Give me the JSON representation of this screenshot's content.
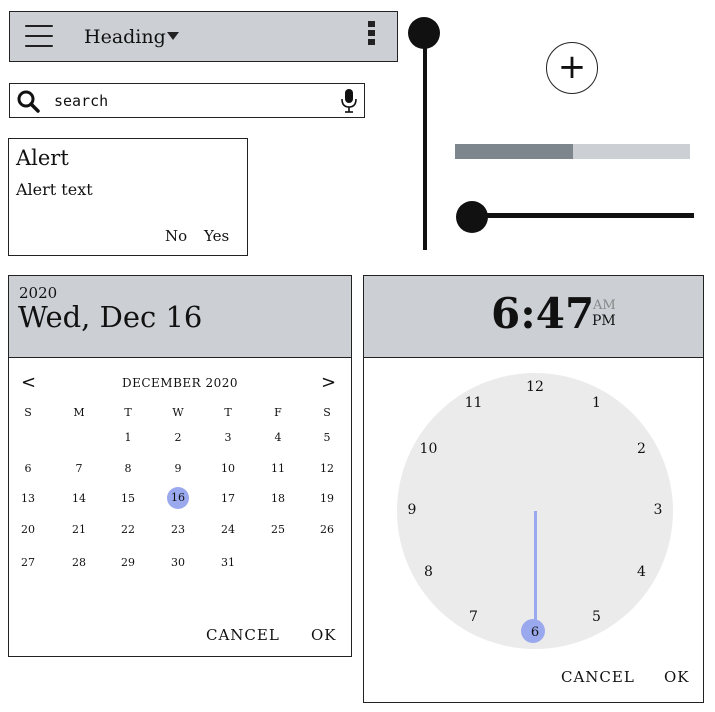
{
  "app_bar": {
    "title": "Heading"
  },
  "search": {
    "placeholder": "search"
  },
  "alert": {
    "title": "Alert",
    "text": "Alert text",
    "no_label": "No",
    "yes_label": "Yes"
  },
  "progress": {
    "value": 0.5
  },
  "vertical_slider": {
    "value": 1.0
  },
  "horizontal_slider": {
    "value": 0.0
  },
  "fab": {
    "label": "+"
  },
  "date_picker": {
    "year": "2020",
    "selected_date": "Wed, Dec 16",
    "month_label": "DECEMBER 2020",
    "prev_label": "<",
    "next_label": ">",
    "weekdays": [
      "S",
      "M",
      "T",
      "W",
      "T",
      "F",
      "S"
    ],
    "weeks": [
      [
        "",
        "",
        "1",
        "2",
        "3",
        "4",
        "5"
      ],
      [
        "6",
        "7",
        "8",
        "9",
        "10",
        "11",
        "12"
      ],
      [
        "13",
        "14",
        "15",
        "16",
        "17",
        "18",
        "19"
      ],
      [
        "20",
        "21",
        "22",
        "23",
        "24",
        "25",
        "26"
      ],
      [
        "27",
        "28",
        "29",
        "30",
        "31",
        "",
        ""
      ]
    ],
    "selected_day": "16",
    "cancel_label": "CANCEL",
    "ok_label": "OK"
  },
  "time_picker": {
    "time": "6:47",
    "am_label": "AM",
    "pm_label": "PM",
    "hours": [
      "12",
      "1",
      "2",
      "3",
      "4",
      "5",
      "6",
      "7",
      "8",
      "9",
      "10",
      "11"
    ],
    "selected_hour": "6",
    "cancel_label": "CANCEL",
    "ok_label": "OK"
  },
  "colors": {
    "header_gray": "#ccd0d5",
    "accent_blue": "#9aa8ee",
    "progress_fill": "#7d858d",
    "clock_face": "#ebebeb"
  }
}
